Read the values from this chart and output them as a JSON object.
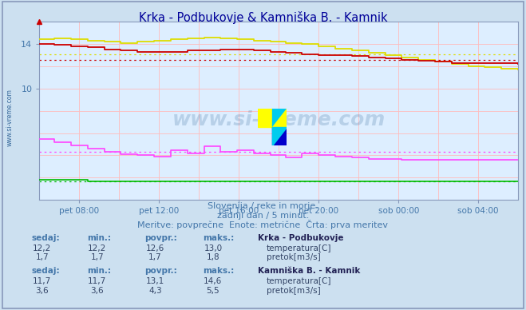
{
  "title": "Krka - Podbukovje & Kamniška B. - Kamnik",
  "bg_color": "#cce0f0",
  "plot_bg_color": "#ddeeff",
  "text_color": "#4477aa",
  "title_color": "#000099",
  "x_labels": [
    "pet 08:00",
    "pet 12:00",
    "pet 16:00",
    "pet 20:00",
    "sob 00:00",
    "sob 04:00"
  ],
  "x_ticks": [
    24,
    72,
    120,
    168,
    216,
    264
  ],
  "xlim": [
    0,
    288
  ],
  "ylim": [
    0,
    16
  ],
  "ytick_positions": [
    10,
    14
  ],
  "subtitle1": "Slovenija / reke in morje.",
  "subtitle2": "zadnji dan / 5 minut.",
  "subtitle3": "Meritve: povprečne  Enote: metrične  Črta: prva meritev",
  "watermark": "www.si-vreme.com",
  "legend_title1": "Krka - Podbukovje",
  "legend_title2": "Kamniška B. - Kamnik",
  "table1_headers": [
    "sedaj:",
    "min.:",
    "povpr.:",
    "maks.:"
  ],
  "table1_row1": [
    "12,2",
    "12,2",
    "12,6",
    "13,0"
  ],
  "table1_row2": [
    "1,7",
    "1,7",
    "1,7",
    "1,8"
  ],
  "table1_label1": "temperatura[C]",
  "table1_label2": "pretok[m3/s]",
  "table1_color1": "#cc0000",
  "table1_color2": "#00bb00",
  "table2_headers": [
    "sedaj:",
    "min.:",
    "povpr.:",
    "maks.:"
  ],
  "table2_row1": [
    "11,7",
    "11,7",
    "13,1",
    "14,6"
  ],
  "table2_row2": [
    "3,6",
    "3,6",
    "4,3",
    "5,5"
  ],
  "table2_label1": "temperatura[C]",
  "table2_label2": "pretok[m3/s]",
  "table2_color1": "#dddd00",
  "table2_color2": "#ff00ff",
  "krka_temp_color": "#cc0000",
  "krka_flow_color": "#00bb00",
  "kamnik_temp_color": "#dddd00",
  "kamnik_flow_color": "#ff44ff",
  "krka_temp_avg": 12.6,
  "krka_flow_avg": 1.7,
  "kamnik_temp_avg": 13.1,
  "kamnik_flow_avg": 4.3
}
